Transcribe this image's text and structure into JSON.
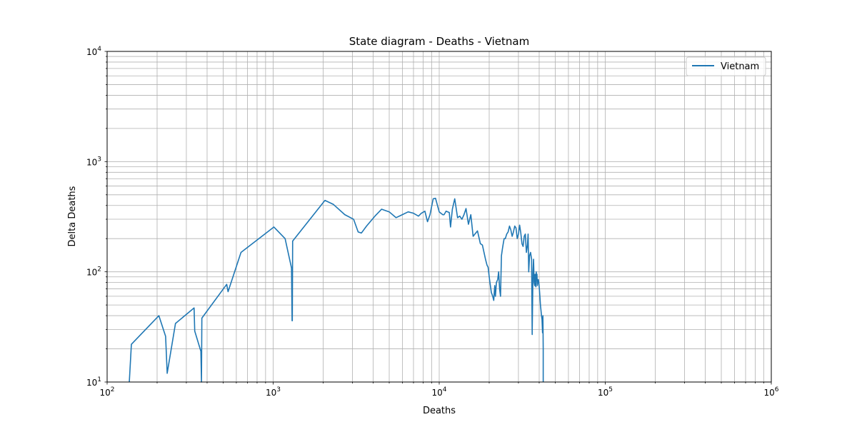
{
  "chart_data": {
    "type": "line",
    "title": "State diagram - Deaths - Vietnam",
    "xlabel": "Deaths",
    "ylabel": "Delta Deaths",
    "xscale": "log",
    "yscale": "log",
    "xlim": [
      100,
      1000000
    ],
    "ylim": [
      10,
      10000
    ],
    "x_ticks": [
      {
        "value": 100,
        "base": "10",
        "exp": "2"
      },
      {
        "value": 1000,
        "base": "10",
        "exp": "3"
      },
      {
        "value": 10000,
        "base": "10",
        "exp": "4"
      },
      {
        "value": 100000,
        "base": "10",
        "exp": "5"
      },
      {
        "value": 1000000,
        "base": "10",
        "exp": "6"
      }
    ],
    "y_ticks": [
      {
        "value": 10,
        "base": "10",
        "exp": "1"
      },
      {
        "value": 100,
        "base": "10",
        "exp": "2"
      },
      {
        "value": 1000,
        "base": "10",
        "exp": "3"
      },
      {
        "value": 10000,
        "base": "10",
        "exp": "4"
      }
    ],
    "grid": "major and minor",
    "legend_position": "top-right",
    "series": [
      {
        "name": "Vietnam",
        "color": "#1f77b4",
        "x": [
          136,
          140,
          205,
          225,
          230,
          258,
          334,
          337,
          367,
          370,
          372,
          525,
          535,
          640,
          1010,
          1180,
          1290,
          1300,
          1302,
          1304,
          1310,
          2050,
          2300,
          2700,
          3050,
          3250,
          3400,
          3650,
          4100,
          4500,
          5000,
          5500,
          6000,
          6500,
          7000,
          7500,
          7800,
          8200,
          8500,
          8800,
          9200,
          9500,
          10000,
          10500,
          10700,
          11000,
          11500,
          11700,
          12000,
          12400,
          12900,
          13300,
          13700,
          14100,
          14500,
          15000,
          15500,
          16000,
          17000,
          17700,
          18200,
          19000,
          19400,
          19700,
          20100,
          20600,
          21000,
          21300,
          21600,
          21800,
          22100,
          22500,
          22800,
          23100,
          23400,
          23700,
          24000,
          24300,
          24600,
          25000,
          25500,
          26000,
          26500,
          27000,
          27500,
          28000,
          28500,
          29000,
          29500,
          30000,
          30500,
          31000,
          31500,
          32000,
          32500,
          33000,
          33500,
          34000,
          34300,
          34600,
          35000,
          35500,
          36000,
          36300,
          36700,
          37000,
          37300,
          37600,
          37800,
          38000,
          38200,
          38400,
          38600,
          38800,
          39000,
          39200,
          39500,
          39800,
          40100,
          40400,
          40700,
          41000,
          41300,
          41600,
          41900,
          42100,
          42200,
          42300,
          42300
        ],
        "y": [
          10,
          22,
          40,
          26,
          12,
          34,
          47,
          29,
          19,
          10,
          38,
          77,
          66,
          150,
          255,
          200,
          108,
          36,
          40,
          36,
          190,
          445,
          410,
          330,
          300,
          230,
          225,
          260,
          320,
          370,
          350,
          310,
          330,
          350,
          340,
          320,
          340,
          355,
          285,
          330,
          460,
          465,
          350,
          330,
          330,
          355,
          345,
          255,
          370,
          460,
          310,
          320,
          300,
          330,
          375,
          270,
          330,
          210,
          235,
          180,
          175,
          130,
          115,
          110,
          85,
          65,
          60,
          55,
          75,
          60,
          80,
          85,
          100,
          70,
          60,
          140,
          160,
          180,
          200,
          200,
          220,
          230,
          260,
          240,
          210,
          230,
          260,
          250,
          200,
          220,
          265,
          225,
          180,
          170,
          210,
          220,
          150,
          175,
          220,
          100,
          140,
          150,
          130,
          27,
          100,
          130,
          80,
          75,
          95,
          85,
          73,
          100,
          85,
          95,
          75,
          80,
          85,
          80,
          70,
          60,
          50,
          45,
          40,
          37,
          28,
          40,
          30,
          20,
          10
        ]
      }
    ]
  }
}
